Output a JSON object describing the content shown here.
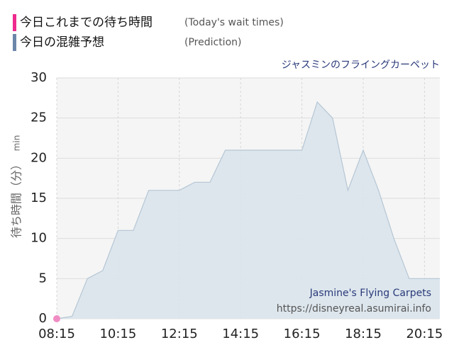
{
  "chart_data": {
    "type": "area",
    "title": "ジャスミンのフライングカーペット",
    "ylabel": "待ち時間（分）",
    "ylabel_unit": "min",
    "annotations": [
      "Jasmine's Flying Carpets",
      "https://disneyreal.asumirai.info"
    ],
    "series": [
      {
        "name": "今日これまでの待ち時間",
        "note": "(Today's wait times)",
        "color": "#ee2a8f",
        "point_color": "#f08cc4",
        "x": [
          495
        ],
        "values": [
          0
        ]
      },
      {
        "name": "今日の混雑予想",
        "note": "(Prediction)",
        "color": "#6b86a8",
        "fill": "#dae4ec",
        "stroke": "#b5c6d4",
        "x": [
          495,
          525,
          555,
          585,
          615,
          645,
          675,
          705,
          735,
          765,
          795,
          825,
          855,
          885,
          915,
          945,
          975,
          1005,
          1035,
          1065,
          1095,
          1125,
          1155,
          1185,
          1215,
          1245
        ],
        "values": [
          0,
          0.3,
          5,
          6,
          11,
          11,
          16,
          16,
          16,
          17,
          17,
          21,
          21,
          21,
          21,
          21,
          21,
          27,
          25,
          16,
          21,
          16,
          10,
          5,
          5,
          5
        ]
      }
    ],
    "xlim": [
      495,
      1245
    ],
    "xticks": [
      {
        "value": 495,
        "label": "08:15"
      },
      {
        "value": 615,
        "label": "10:15"
      },
      {
        "value": 735,
        "label": "12:15"
      },
      {
        "value": 855,
        "label": "14:15"
      },
      {
        "value": 975,
        "label": "16:15"
      },
      {
        "value": 1095,
        "label": "18:15"
      },
      {
        "value": 1215,
        "label": "20:15"
      }
    ],
    "ylim": [
      0,
      30
    ],
    "yticks": [
      0,
      5,
      10,
      15,
      20,
      25,
      30
    ],
    "grid": true
  }
}
